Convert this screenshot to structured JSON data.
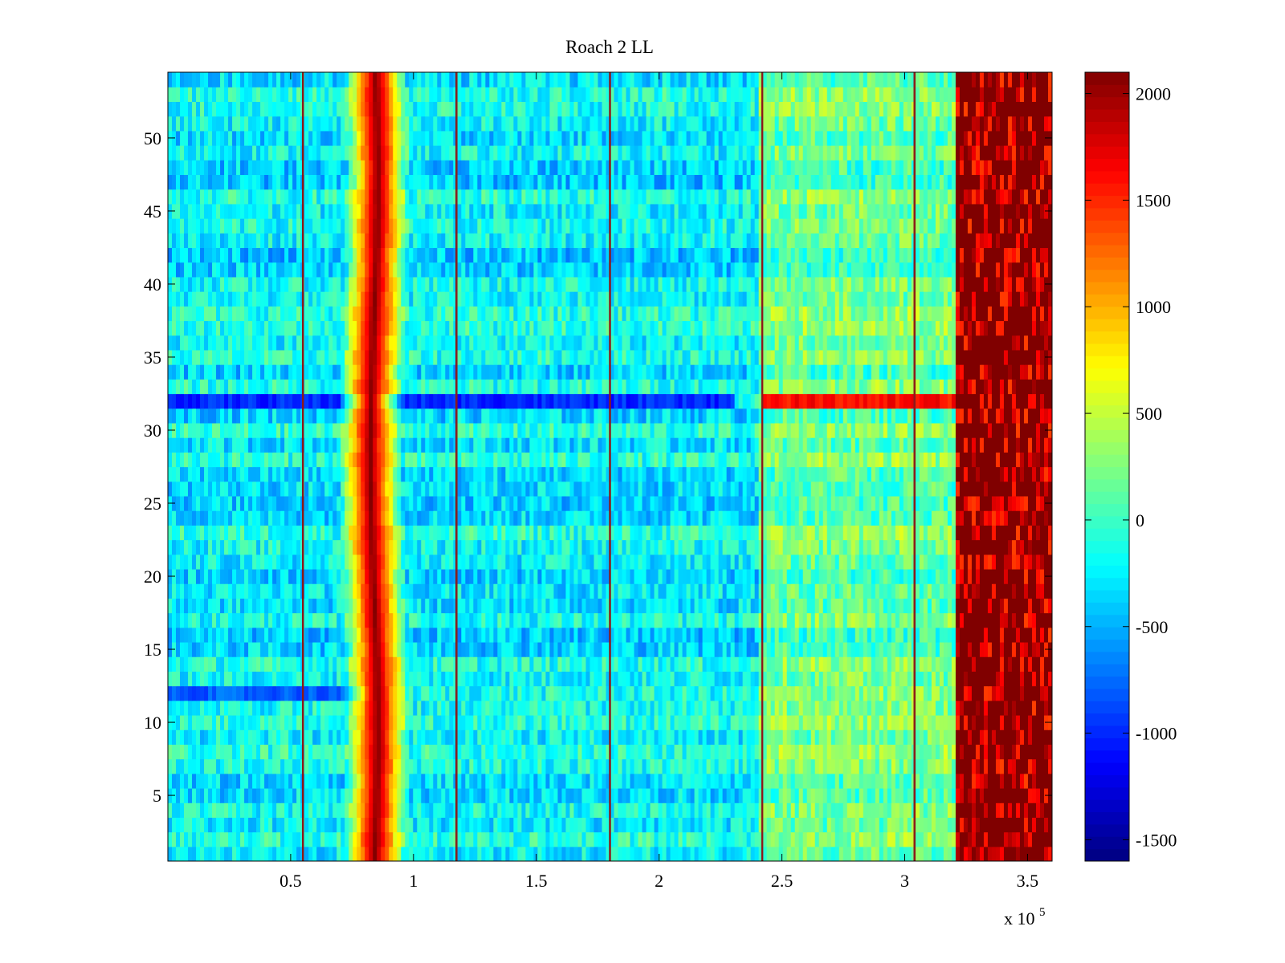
{
  "chart_data": {
    "type": "heatmap",
    "title": "Roach 2 LL",
    "xlabel": "",
    "ylabel": "",
    "x_multiplier_label": "x 10",
    "x_multiplier_exponent": "5",
    "xlim": [
      0,
      360000
    ],
    "ylim": [
      0.5,
      54.5
    ],
    "x_ticks": [
      {
        "value": 0.5,
        "label": "0.5"
      },
      {
        "value": 1,
        "label": "1"
      },
      {
        "value": 1.5,
        "label": "1.5"
      },
      {
        "value": 2,
        "label": "2"
      },
      {
        "value": 2.5,
        "label": "2.5"
      },
      {
        "value": 3,
        "label": "3"
      },
      {
        "value": 3.5,
        "label": "3.5"
      }
    ],
    "y_ticks": [
      {
        "value": 5,
        "label": "5"
      },
      {
        "value": 10,
        "label": "10"
      },
      {
        "value": 15,
        "label": "15"
      },
      {
        "value": 20,
        "label": "20"
      },
      {
        "value": 25,
        "label": "25"
      },
      {
        "value": 30,
        "label": "30"
      },
      {
        "value": 35,
        "label": "35"
      },
      {
        "value": 40,
        "label": "40"
      },
      {
        "value": 45,
        "label": "45"
      },
      {
        "value": 50,
        "label": "50"
      }
    ],
    "rows": 54,
    "colormap": "jet",
    "colorbar": {
      "clim": [
        -1600,
        2100
      ],
      "ticks": [
        {
          "value": 2000,
          "label": "2000"
        },
        {
          "value": 1500,
          "label": "1500"
        },
        {
          "value": 1000,
          "label": "1000"
        },
        {
          "value": 500,
          "label": "500"
        },
        {
          "value": 0,
          "label": "0"
        },
        {
          "value": -500,
          "label": "-500"
        },
        {
          "value": -1000,
          "label": "-1000"
        },
        {
          "value": -1500,
          "label": "-1500"
        }
      ]
    },
    "features": {
      "vertical_lines_x": [
        55000,
        117500,
        180000,
        242000,
        304000
      ],
      "hot_band": {
        "x_start": 78000,
        "x_end": 90000,
        "peak_value": 2100
      },
      "saturated_region": {
        "x_start": 320000,
        "x_end": 360000,
        "value": 2000
      },
      "low_rows": [
        {
          "row": 32,
          "x_start": 0,
          "x_end": 230000,
          "value": -1000
        },
        {
          "row": 12,
          "x_start": 0,
          "x_end": 80000,
          "value": -800
        }
      ],
      "high_row_segments": [
        {
          "row": 32,
          "x_start": 242000,
          "x_end": 320000,
          "value": 1600
        }
      ],
      "background_levels": [
        {
          "x_start": 0,
          "x_end": 240000,
          "mean": -250
        },
        {
          "x_start": 240000,
          "x_end": 320000,
          "mean": 150
        }
      ]
    }
  }
}
